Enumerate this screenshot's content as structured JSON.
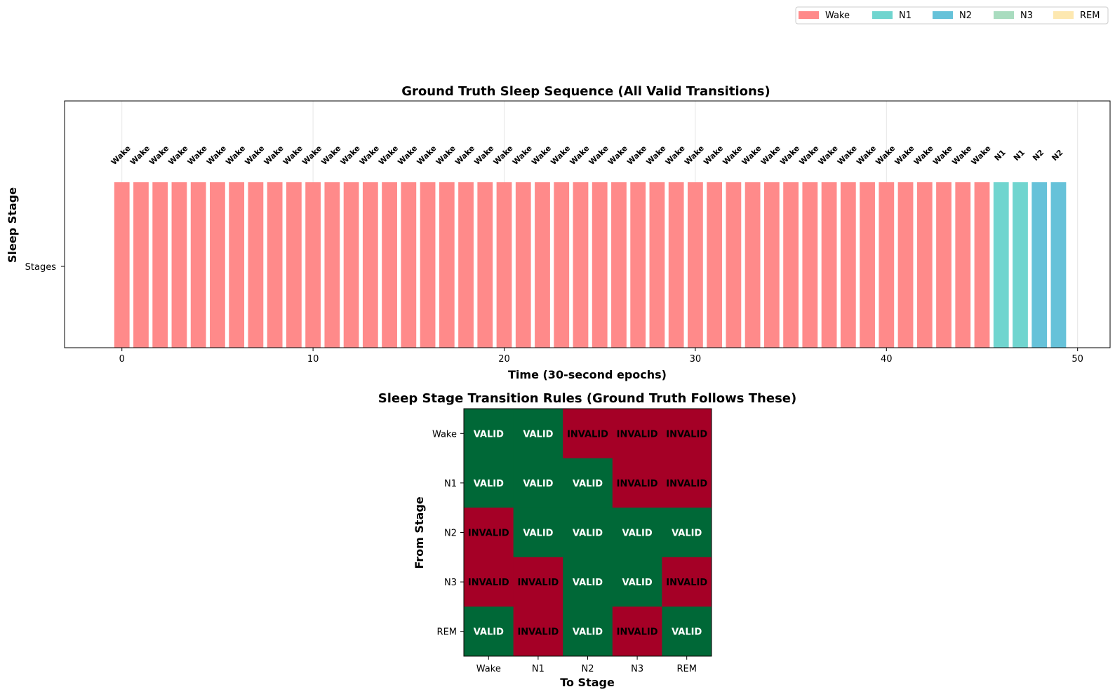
{
  "colors": {
    "Wake": "#ff8a8a",
    "N1": "#70d5cf",
    "N2": "#66c2d9",
    "N3": "#a9dcbf",
    "REM": "#fde8b0",
    "valid": "#006837",
    "invalid": "#a50026"
  },
  "legend": {
    "entries": [
      "Wake",
      "N1",
      "N2",
      "N3",
      "REM"
    ],
    "placement": "top-right"
  },
  "chart_data": [
    {
      "type": "bar",
      "title": "Ground Truth Sleep Sequence (All Valid Transitions)",
      "xlabel": "Time (30-second epochs)",
      "ylabel": "Sleep Stage",
      "ytick_labels": [
        "Stages"
      ],
      "xticks": [
        0,
        10,
        20,
        30,
        40,
        50
      ],
      "xlim": [
        -3,
        51.7
      ],
      "grid": true,
      "x": [
        0,
        1,
        2,
        3,
        4,
        5,
        6,
        7,
        8,
        9,
        10,
        11,
        12,
        13,
        14,
        15,
        16,
        17,
        18,
        19,
        20,
        21,
        22,
        23,
        24,
        25,
        26,
        27,
        28,
        29,
        30,
        31,
        32,
        33,
        34,
        35,
        36,
        37,
        38,
        39,
        40,
        41,
        42,
        43,
        44,
        45,
        46,
        47,
        48,
        49
      ],
      "stages": [
        "Wake",
        "Wake",
        "Wake",
        "Wake",
        "Wake",
        "Wake",
        "Wake",
        "Wake",
        "Wake",
        "Wake",
        "Wake",
        "Wake",
        "Wake",
        "Wake",
        "Wake",
        "Wake",
        "Wake",
        "Wake",
        "Wake",
        "Wake",
        "Wake",
        "Wake",
        "Wake",
        "Wake",
        "Wake",
        "Wake",
        "Wake",
        "Wake",
        "Wake",
        "Wake",
        "Wake",
        "Wake",
        "Wake",
        "Wake",
        "Wake",
        "Wake",
        "Wake",
        "Wake",
        "Wake",
        "Wake",
        "Wake",
        "Wake",
        "Wake",
        "Wake",
        "Wake",
        "Wake",
        "N1",
        "N1",
        "N2",
        "N2"
      ]
    },
    {
      "type": "heatmap",
      "title": "Sleep Stage Transition Rules (Ground Truth Follows These)",
      "xlabel": "To Stage",
      "ylabel": "From Stage",
      "rows": [
        "Wake",
        "N1",
        "N2",
        "N3",
        "REM"
      ],
      "cols": [
        "Wake",
        "N1",
        "N2",
        "N3",
        "REM"
      ],
      "matrix": [
        [
          "VALID",
          "VALID",
          "INVALID",
          "INVALID",
          "INVALID"
        ],
        [
          "VALID",
          "VALID",
          "VALID",
          "INVALID",
          "INVALID"
        ],
        [
          "INVALID",
          "VALID",
          "VALID",
          "VALID",
          "VALID"
        ],
        [
          "INVALID",
          "INVALID",
          "VALID",
          "VALID",
          "INVALID"
        ],
        [
          "VALID",
          "INVALID",
          "VALID",
          "INVALID",
          "VALID"
        ]
      ]
    }
  ]
}
